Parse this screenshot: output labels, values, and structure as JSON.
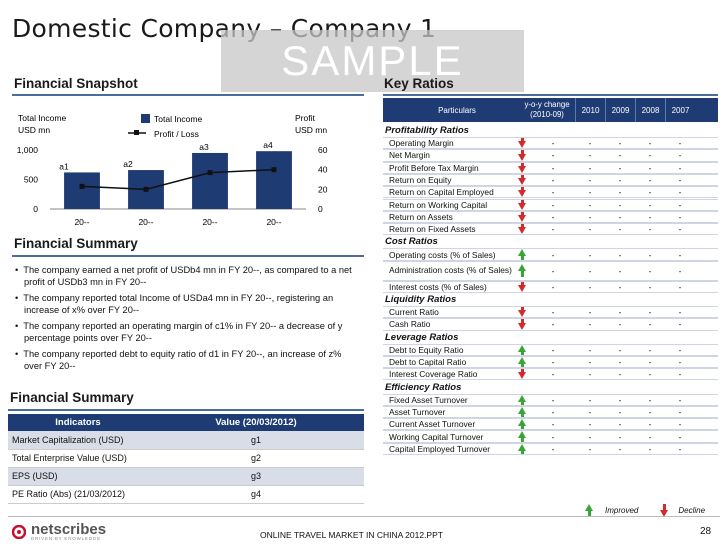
{
  "title": "Domestic Company – Company 1",
  "watermark": "SAMPLE",
  "financial_snapshot": {
    "heading": "Financial Snapshot"
  },
  "chart_data": {
    "type": "bar",
    "categories": [
      "20--",
      "20--",
      "20--",
      "20--"
    ],
    "bar_labels": [
      "a1",
      "a2",
      "a3",
      "a4"
    ],
    "series": [
      {
        "name": "Total Income",
        "type": "bar",
        "axis": "left",
        "values": [
          620,
          660,
          950,
          980
        ]
      },
      {
        "name": "Profit / Loss",
        "type": "line",
        "axis": "right",
        "values": [
          23,
          20,
          37,
          40
        ]
      }
    ],
    "left_axis_label": [
      "Total Income",
      "USD mn"
    ],
    "right_axis_label": [
      "Profit",
      "USD mn"
    ],
    "ylim_left": [
      0,
      1000
    ],
    "ylim_right": [
      0,
      60
    ],
    "left_ticks": [
      "1,000",
      "500",
      "0"
    ],
    "right_ticks": [
      "60",
      "40",
      "20",
      "0"
    ],
    "colors": {
      "bar": "#1e3c73",
      "line": "#111111"
    },
    "legend_position": "top"
  },
  "financial_summary_1": {
    "heading": "Financial Summary",
    "bullets": [
      "The company earned a net profit of USDb4 mn in FY 20--, as compared to a net profit of USDb3 mn in FY 20--",
      "The company reported total Income of  USDa4 mn in FY 20--, registering an increase of x% over FY 20--",
      "The company reported an operating margin of c1% in FY 20-- a decrease of y percentage points over FY 20--",
      "The company reported debt to equity ratio of d1 in FY 20--, an increase of z% over FY 20--"
    ]
  },
  "financial_summary_2": {
    "heading": "Financial Summary",
    "col_headers": [
      "Indicators",
      "Value (20/03/2012)"
    ],
    "rows": [
      [
        "Market Capitalization (USD)",
        "g1"
      ],
      [
        "Total Enterprise Value (USD)",
        "g2"
      ],
      [
        "EPS (USD)",
        "g3"
      ],
      [
        "PE Ratio (Abs) (21/03/2012)",
        "g4"
      ]
    ]
  },
  "key_ratios": {
    "heading": "Key Ratios",
    "col_particulars": "Particulars",
    "col_change": "y-o-y change (2010-09)",
    "years": [
      "2010",
      "2009",
      "2008",
      "2007"
    ],
    "groups": [
      {
        "name": "Profitability Ratios",
        "rows": [
          {
            "label": "Operating Margin",
            "trend": "down"
          },
          {
            "label": "Net Margin",
            "trend": "down"
          },
          {
            "label": "Profit Before Tax Margin",
            "trend": "down"
          },
          {
            "label": "Return on Equity",
            "trend": "down"
          },
          {
            "label": "Return on Capital Employed",
            "trend": "down"
          },
          {
            "label": "Return on Working Capital",
            "trend": "down"
          },
          {
            "label": "Return on Assets",
            "trend": "down"
          },
          {
            "label": "Return on Fixed Assets",
            "trend": "down"
          }
        ]
      },
      {
        "name": "Cost Ratios",
        "rows": [
          {
            "label": "Operating costs (% of Sales)",
            "trend": "up"
          },
          {
            "label": "Administration costs (% of Sales)",
            "trend": "up"
          },
          {
            "label": "Interest costs (% of Sales)",
            "trend": "down"
          }
        ]
      },
      {
        "name": "Liquidity Ratios",
        "rows": [
          {
            "label": "Current Ratio",
            "trend": "down"
          },
          {
            "label": "Cash Ratio",
            "trend": "down"
          }
        ]
      },
      {
        "name": "Leverage Ratios",
        "rows": [
          {
            "label": "Debt to Equity Ratio",
            "trend": "up"
          },
          {
            "label": "Debt to Capital Ratio",
            "trend": "up"
          },
          {
            "label": "Interest Coverage Ratio",
            "trend": "down"
          }
        ]
      },
      {
        "name": "Efficiency Ratios",
        "rows": [
          {
            "label": "Fixed Asset Turnover",
            "trend": "up"
          },
          {
            "label": "Asset Turnover",
            "trend": "up"
          },
          {
            "label": "Current Asset Turnover",
            "trend": "up"
          },
          {
            "label": "Working Capital Turnover",
            "trend": "up"
          },
          {
            "label": "Capital Employed Turnover",
            "trend": "up"
          }
        ]
      }
    ],
    "cell_value": "-",
    "legend_improved": "Improved",
    "legend_decline": "Decline"
  },
  "footer": {
    "logo_text": "netscribes",
    "logo_tagline": "DRIVEN BY KNOWLEDGE",
    "center": "ONLINE TRAVEL MARKET IN CHINA 2012.PPT",
    "page": "28"
  }
}
